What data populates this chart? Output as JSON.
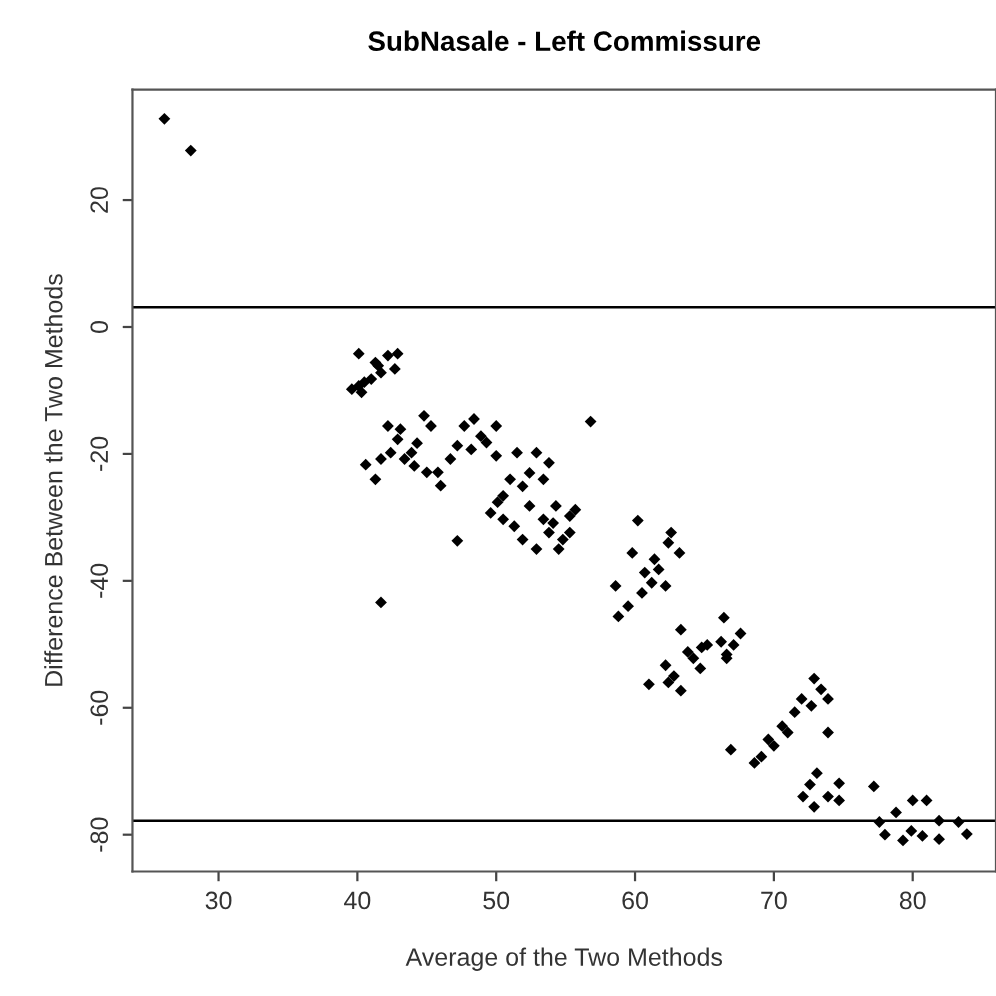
{
  "chart_data": {
    "type": "scatter",
    "title": "SubNasale - Left Commissure",
    "xlabel": "Average of the Two Methods",
    "ylabel": "Difference Between the Two Methods",
    "xlim": [
      23.8,
      86
    ],
    "ylim": [
      -85.8,
      37.4
    ],
    "xticks": [
      30,
      40,
      50,
      60,
      70,
      80
    ],
    "yticks": [
      -80,
      -60,
      -40,
      -20,
      0,
      20
    ],
    "grid": false,
    "legend": false,
    "marker": "diamond",
    "ref_lines": [
      {
        "axis": "y",
        "value": 3.1,
        "color": "#000000"
      },
      {
        "axis": "y",
        "value": -77.8,
        "color": "#000000"
      }
    ],
    "series": [
      {
        "color": "#000000",
        "x": [
          26.1,
          28.0,
          40.1,
          39.6,
          40.3,
          41,
          41.5,
          42.2,
          42.9,
          42.7,
          41.7,
          40.5,
          40.1,
          41.3,
          40.6,
          41.3,
          42.2,
          42.9,
          43.9,
          44.8,
          43.4,
          42.4,
          44.3,
          45.3,
          45.8,
          46,
          46.7,
          47.2,
          47.7,
          48.4,
          48.9,
          49.3,
          50,
          48.2,
          50,
          41.7,
          43.1,
          44.1,
          45,
          47.2,
          41.7,
          56.8,
          50.5,
          51.5,
          52.9,
          53.8,
          49.6,
          50.5,
          51.9,
          52.4,
          53.4,
          51.9,
          52.9,
          53.8,
          54.8,
          55.3,
          55.7,
          54.3,
          53.4,
          51,
          50.1,
          52.4,
          54.5,
          51.3,
          54.1,
          55.3,
          60.2,
          58.6,
          58.8,
          59.8,
          60.7,
          61.4,
          62.4,
          62.6,
          63.2,
          62.2,
          60.5,
          59.5,
          61.2,
          61.7,
          66.4,
          63.3,
          67.6,
          64.8,
          66.6,
          61,
          62.4,
          63.3,
          62.2,
          63.8,
          65.2,
          66.6,
          67.1,
          64.7,
          64.2,
          62.8,
          66.2,
          66.9,
          68.6,
          69.6,
          70.6,
          71.5,
          72.9,
          73.9,
          72.7,
          72,
          73.9,
          69.1,
          70,
          71,
          73.4,
          73.1,
          72.1,
          72.9,
          73.9,
          74.7,
          74.7,
          72.6,
          77.2,
          77.6,
          78.8,
          80,
          81,
          79.3,
          80.7,
          81.9,
          81.9,
          83.3,
          83.9,
          78,
          79.9
        ],
        "values": [
          32.8,
          27.8,
          -4.2,
          -9.8,
          -10.3,
          -8.2,
          -6.1,
          -4.5,
          -4.2,
          -6.6,
          -7.2,
          -8.7,
          -9.3,
          -5.6,
          -21.7,
          -24,
          -15.6,
          -17.7,
          -19.8,
          -14,
          -20.8,
          -19.8,
          -18.3,
          -15.6,
          -22.9,
          -25,
          -20.8,
          -18.7,
          -15.6,
          -14.5,
          -17.2,
          -18.2,
          -15.6,
          -19.3,
          -20.3,
          -20.8,
          -16.1,
          -21.9,
          -22.9,
          -33.7,
          -43.4,
          -14.9,
          -26.6,
          -19.8,
          -19.8,
          -21.4,
          -29.3,
          -30.3,
          -25.1,
          -28.2,
          -24,
          -33.5,
          -35,
          -32.4,
          -33.5,
          -29.8,
          -28.8,
          -28.2,
          -30.3,
          -24,
          -27.6,
          -23,
          -35,
          -31.4,
          -30.9,
          -32.4,
          -30.5,
          -40.8,
          -45.6,
          -35.6,
          -38.7,
          -36.6,
          -34,
          -32.4,
          -35.6,
          -40.8,
          -41.9,
          -44,
          -40.3,
          -38.2,
          -45.8,
          -47.7,
          -48.3,
          -50.5,
          -51.6,
          -56.3,
          -56,
          -57.3,
          -53.3,
          -51.2,
          -50.1,
          -52.2,
          -50.1,
          -53.8,
          -52.2,
          -55,
          -49.6,
          -66.6,
          -68.7,
          -65,
          -62.9,
          -60.7,
          -55.4,
          -58.6,
          -59.7,
          -58.6,
          -63.9,
          -67.7,
          -66,
          -63.9,
          -57.1,
          -70.3,
          -74,
          -75.6,
          -74,
          -71.9,
          -74.6,
          -72.1,
          -72.4,
          -78,
          -76.5,
          -74.6,
          -74.6,
          -80.9,
          -80.2,
          -77.8,
          -80.7,
          -78,
          -79.9,
          -80,
          -79.4
        ]
      }
    ]
  }
}
